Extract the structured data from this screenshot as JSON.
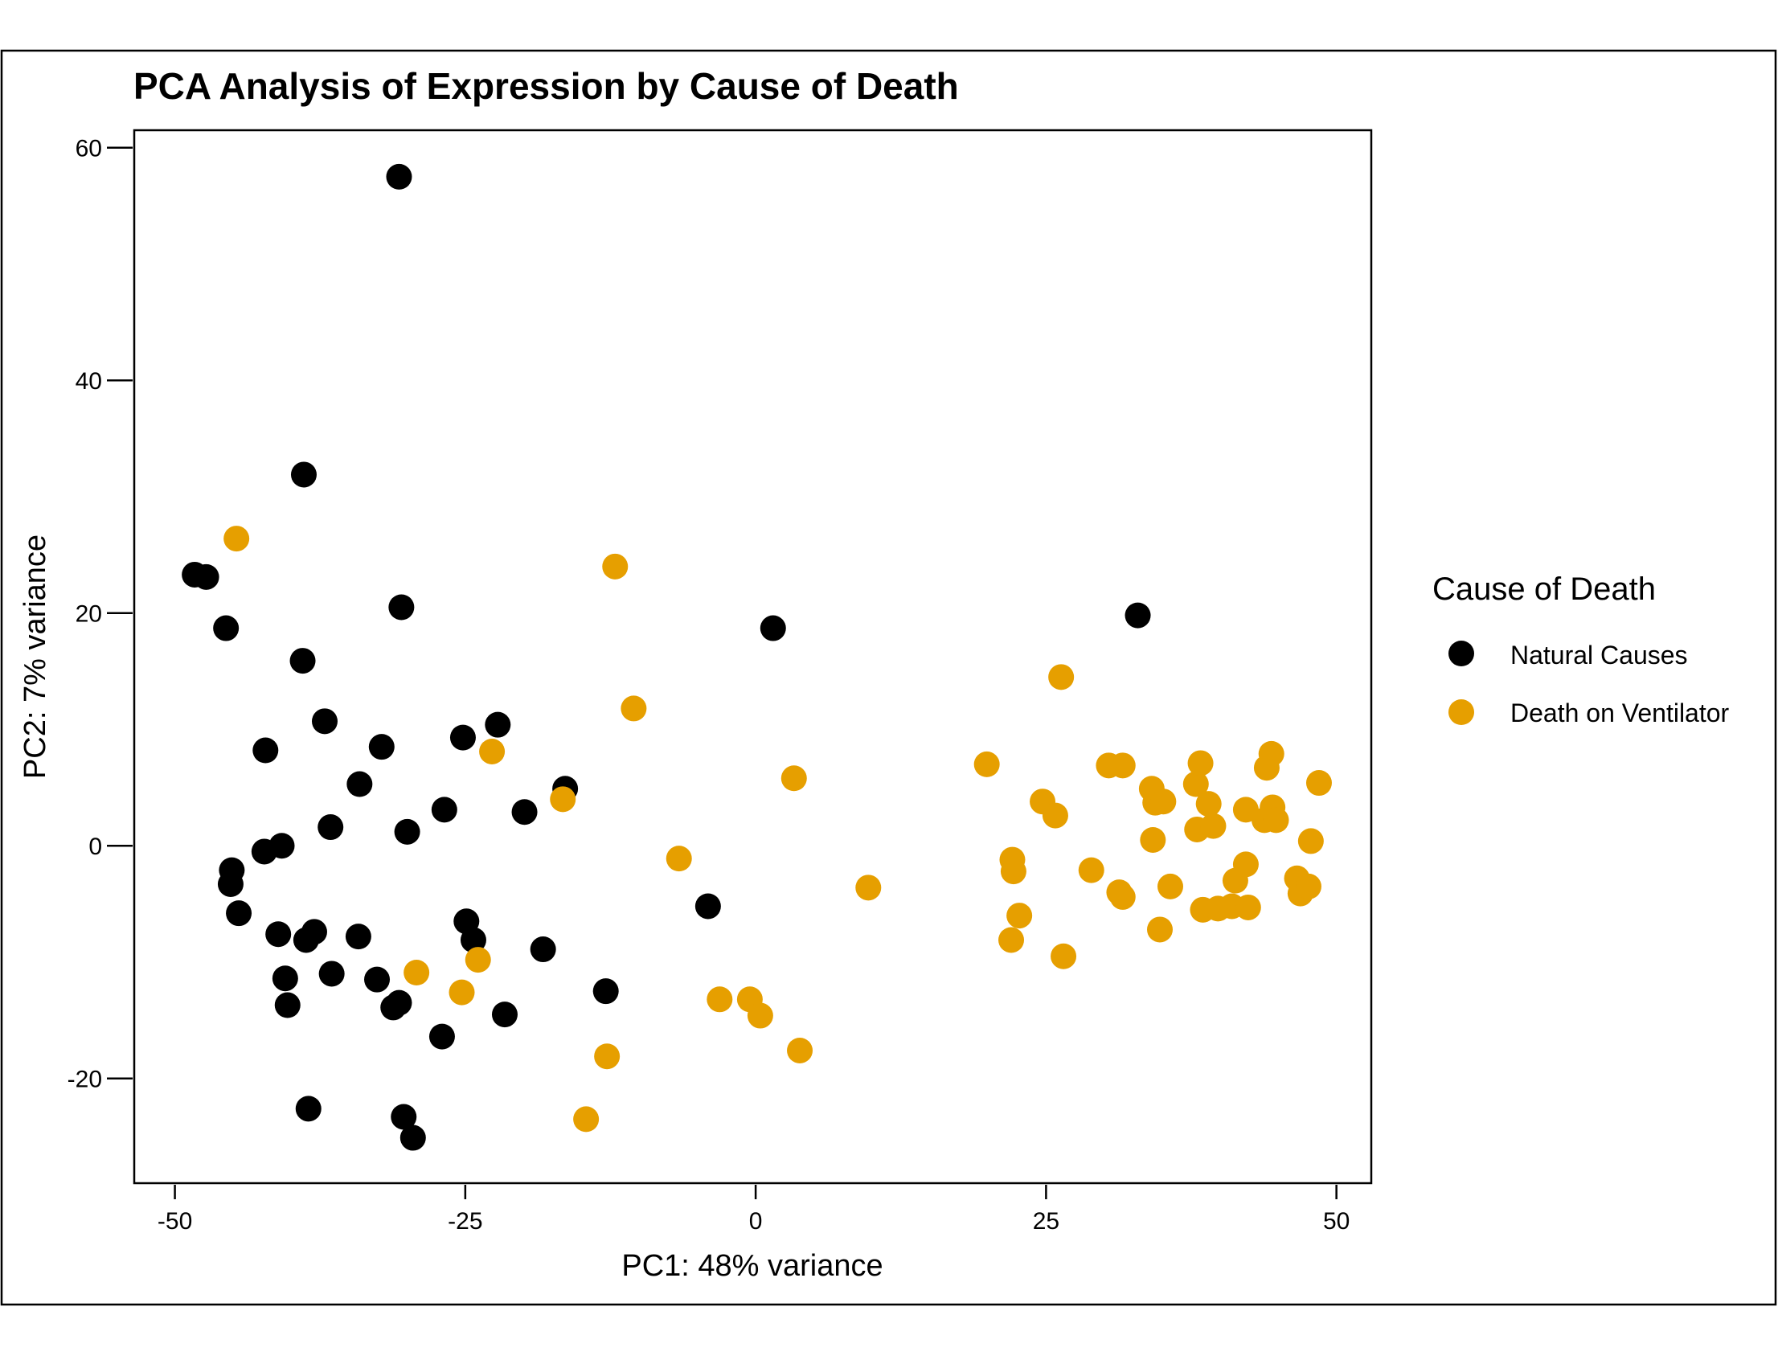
{
  "chart_data": {
    "type": "scatter",
    "title": "PCA Analysis of Expression by Cause of Death",
    "xlabel": "PC1: 48% variance",
    "ylabel": "PC2: 7% variance",
    "xlim": [
      -53.5,
      53
    ],
    "ylim": [
      -29,
      61.5
    ],
    "xticks": [
      -50,
      -25,
      0,
      25,
      50
    ],
    "xtick_labels": [
      "-50",
      "-25",
      "0",
      "25",
      "50"
    ],
    "yticks": [
      -20,
      0,
      20,
      40,
      60
    ],
    "ytick_labels": [
      "-20",
      "0",
      "20",
      "40",
      "60"
    ],
    "grid": false,
    "legend": {
      "title": "Cause of Death",
      "placement": "right"
    },
    "series": [
      {
        "name": "Natural Causes",
        "color": "#000000",
        "points": [
          [
            -30.7,
            57.5
          ],
          [
            -38.9,
            31.9
          ],
          [
            -48.3,
            23.3
          ],
          [
            -47.3,
            23.1
          ],
          [
            -30.5,
            20.5
          ],
          [
            -45.6,
            18.7
          ],
          [
            -39.0,
            15.9
          ],
          [
            -37.1,
            10.7
          ],
          [
            -42.2,
            8.2
          ],
          [
            -32.2,
            8.5
          ],
          [
            -25.2,
            9.3
          ],
          [
            -22.2,
            10.4
          ],
          [
            -34.1,
            5.3
          ],
          [
            -16.4,
            4.9
          ],
          [
            -26.8,
            3.1
          ],
          [
            -19.9,
            2.9
          ],
          [
            -36.6,
            1.6
          ],
          [
            -30.0,
            1.2
          ],
          [
            -42.3,
            -0.5
          ],
          [
            -40.8,
            0.0
          ],
          [
            -45.1,
            -2.1
          ],
          [
            -45.2,
            -3.3
          ],
          [
            -44.5,
            -5.8
          ],
          [
            -41.1,
            -7.6
          ],
          [
            -38.0,
            -7.4
          ],
          [
            -38.7,
            -8.1
          ],
          [
            -34.2,
            -7.8
          ],
          [
            -24.9,
            -6.5
          ],
          [
            -24.3,
            -8.1
          ],
          [
            -18.3,
            -8.9
          ],
          [
            -40.5,
            -11.4
          ],
          [
            -36.5,
            -11.0
          ],
          [
            -32.6,
            -11.5
          ],
          [
            -40.3,
            -13.7
          ],
          [
            -31.2,
            -13.9
          ],
          [
            -30.7,
            -13.5
          ],
          [
            -27.0,
            -16.4
          ],
          [
            -21.6,
            -14.5
          ],
          [
            -12.9,
            -12.5
          ],
          [
            -38.5,
            -22.6
          ],
          [
            -30.3,
            -23.3
          ],
          [
            -29.5,
            -25.1
          ],
          [
            1.5,
            18.7
          ],
          [
            32.9,
            19.8
          ],
          [
            -4.1,
            -5.2
          ]
        ]
      },
      {
        "name": "Death on Ventilator",
        "color": "#E69F00",
        "points": [
          [
            -44.7,
            26.4
          ],
          [
            -12.1,
            24.0
          ],
          [
            -10.5,
            11.8
          ],
          [
            26.3,
            14.5
          ],
          [
            -22.7,
            8.1
          ],
          [
            -16.6,
            4.0
          ],
          [
            3.3,
            5.8
          ],
          [
            -6.6,
            -1.1
          ],
          [
            9.7,
            -3.6
          ],
          [
            19.9,
            7.0
          ],
          [
            24.7,
            3.8
          ],
          [
            25.8,
            2.6
          ],
          [
            22.1,
            -1.2
          ],
          [
            22.2,
            -2.2
          ],
          [
            22.7,
            -6.0
          ],
          [
            22.0,
            -8.1
          ],
          [
            26.5,
            -9.5
          ],
          [
            28.9,
            -2.1
          ],
          [
            30.4,
            6.9
          ],
          [
            31.6,
            6.9
          ],
          [
            31.3,
            -4.0
          ],
          [
            31.6,
            -4.4
          ],
          [
            34.1,
            4.9
          ],
          [
            34.4,
            3.7
          ],
          [
            35.1,
            3.8
          ],
          [
            34.2,
            0.5
          ],
          [
            35.7,
            -3.5
          ],
          [
            34.8,
            -7.2
          ],
          [
            37.9,
            5.3
          ],
          [
            38.3,
            7.1
          ],
          [
            39.0,
            3.6
          ],
          [
            38.0,
            1.4
          ],
          [
            39.4,
            1.7
          ],
          [
            38.5,
            -5.5
          ],
          [
            39.8,
            -5.4
          ],
          [
            41.0,
            -5.2
          ],
          [
            42.4,
            -5.3
          ],
          [
            41.3,
            -3.0
          ],
          [
            42.2,
            -1.6
          ],
          [
            42.2,
            3.1
          ],
          [
            43.8,
            2.2
          ],
          [
            44.0,
            6.7
          ],
          [
            44.4,
            7.9
          ],
          [
            44.5,
            3.3
          ],
          [
            44.8,
            2.2
          ],
          [
            46.6,
            -2.8
          ],
          [
            46.9,
            -4.1
          ],
          [
            47.6,
            -3.5
          ],
          [
            47.8,
            0.4
          ],
          [
            48.5,
            5.4
          ],
          [
            -29.2,
            -10.9
          ],
          [
            -25.3,
            -12.6
          ],
          [
            -23.9,
            -9.8
          ],
          [
            -3.1,
            -13.2
          ],
          [
            -0.5,
            -13.2
          ],
          [
            0.4,
            -14.6
          ],
          [
            3.8,
            -17.6
          ],
          [
            -12.8,
            -18.1
          ],
          [
            -14.6,
            -23.5
          ]
        ]
      }
    ]
  }
}
